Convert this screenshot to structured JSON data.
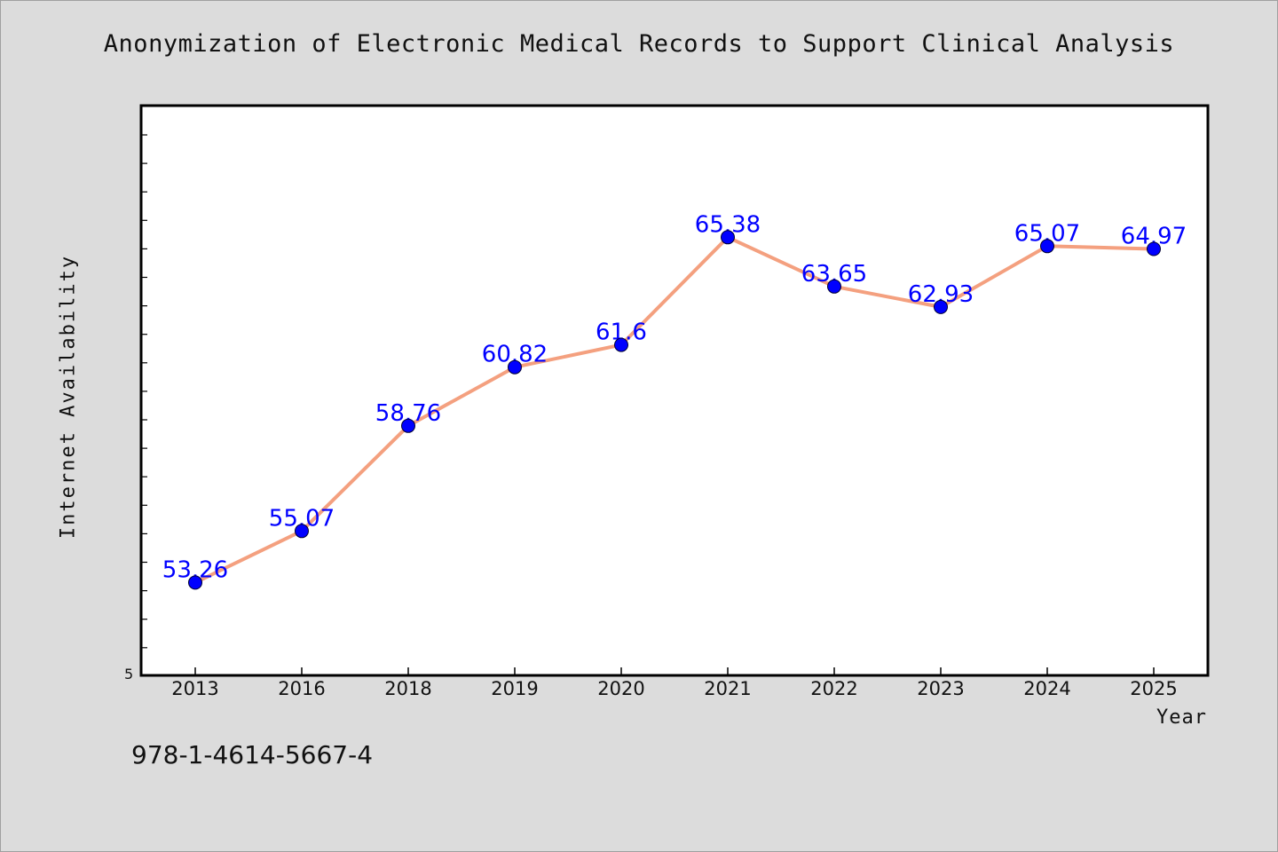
{
  "chart_data": {
    "type": "line",
    "title": "Anonymization of Electronic Medical Records to Support Clinical Analysis",
    "xlabel": "Year",
    "ylabel": "Internet Availability",
    "categories": [
      "2013",
      "2016",
      "2018",
      "2019",
      "2020",
      "2021",
      "2022",
      "2023",
      "2024",
      "2025"
    ],
    "series": [
      {
        "values": [
          53.26,
          55.07,
          58.76,
          60.82,
          61.6,
          65.38,
          63.65,
          62.93,
          65.07,
          64.97
        ],
        "data_labels": [
          "53.26",
          "55.07",
          "58.76",
          "60.82",
          "61.6",
          "65.38",
          "63.65",
          "62.93",
          "65.07",
          "64.97"
        ]
      }
    ],
    "y_min_label": "5",
    "ylim": [
      50.0,
      70.0
    ],
    "grid": false,
    "line_color": "#f4a07f",
    "marker_color": "#0000ff",
    "label_color": "#0000ff"
  },
  "footer": {
    "isbn": "978-1-4614-5667-4"
  }
}
